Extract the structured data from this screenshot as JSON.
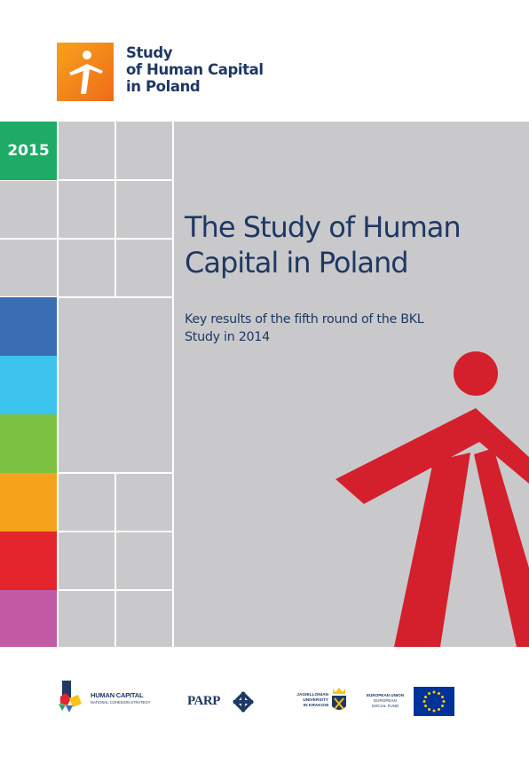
{
  "header": {
    "logo_line1": "Study",
    "logo_line2": "of Human Capital",
    "logo_line3": "in Poland"
  },
  "cover": {
    "year": "2015",
    "title_line1": "The Study of Human",
    "title_line2": "Capital in Poland",
    "subtitle_line1": "Key results of the fifth round of the BKL",
    "subtitle_line2": "Study in 2014"
  },
  "colors": {
    "navy": "#1f3864",
    "panel_grey": "#c9c9cb",
    "figure_red": "#d4202c",
    "strip": [
      "#1eab65",
      "#3a6db4",
      "#3cc4ef",
      "#7dc142",
      "#f7a21b",
      "#e3262e",
      "#c35aa5"
    ]
  },
  "footer": {
    "hc_line1": "HUMAN CAPITAL",
    "hc_line2": "NATIONAL COHESION STRATEGY",
    "parp": "PARP",
    "uj_line1": "JAGIELLONIAN",
    "uj_line2": "UNIVERSITY",
    "uj_line3": "IN KRAKOW",
    "eu_line1": "EUROPEAN UNION",
    "eu_line2": "EUROPEAN",
    "eu_line3": "SOCIAL FUND"
  },
  "icons": [
    "human-figure-logo-icon",
    "red-human-figure-icon",
    "hc-star-icon",
    "parp-diamond-icon",
    "uj-crest-icon",
    "eu-flag-icon"
  ]
}
